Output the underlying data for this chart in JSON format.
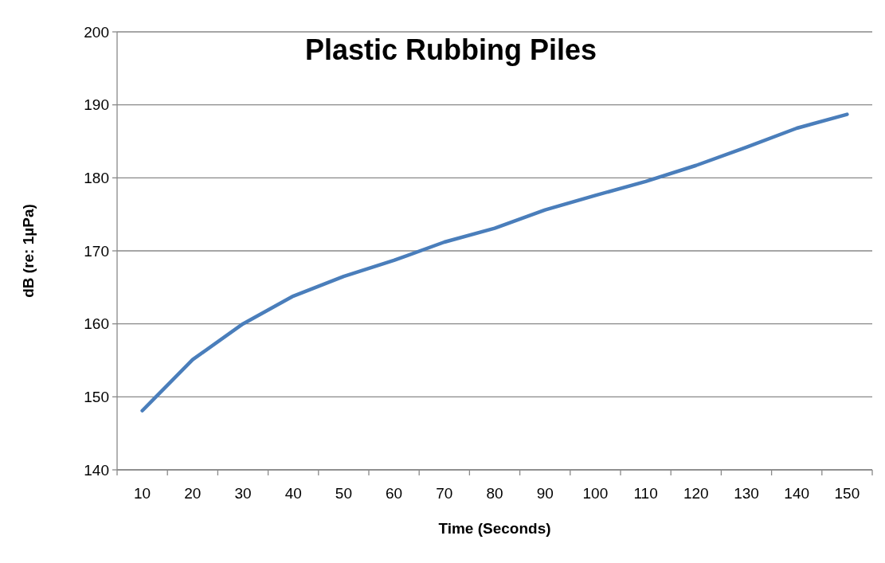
{
  "chart_data": {
    "type": "line",
    "title": "Plastic Rubbing Piles",
    "xlabel": "Time (Seconds)",
    "ylabel": "dB (re: 1µPa)",
    "categories": [
      "10",
      "20",
      "30",
      "40",
      "50",
      "60",
      "70",
      "80",
      "90",
      "100",
      "110",
      "120",
      "130",
      "140",
      "150"
    ],
    "series": [
      {
        "color": "#4a7ebb",
        "values": [
          148.1,
          155.1,
          160,
          163.8,
          166.5,
          168.7,
          171.2,
          173.1,
          175.6,
          177.6,
          179.5,
          181.7,
          184.2,
          186.8,
          188.7
        ]
      }
    ],
    "ylim": [
      140,
      200
    ],
    "yticks": [
      140,
      150,
      160,
      170,
      180,
      190,
      200
    ],
    "grid": "y",
    "marker": "none",
    "line_style": "solid"
  }
}
